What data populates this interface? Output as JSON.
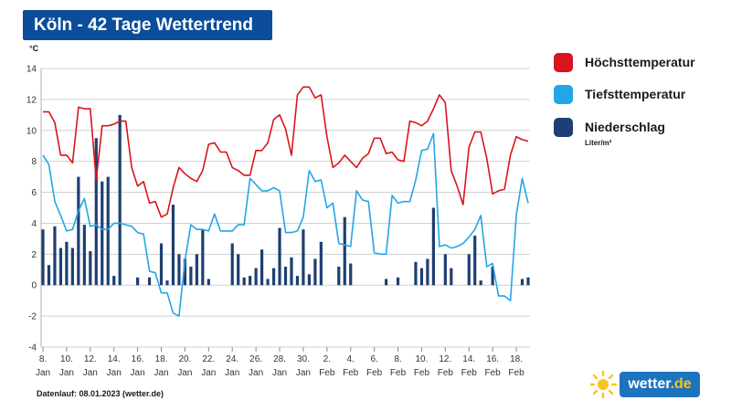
{
  "title": "Köln - 42 Tage Wettertrend",
  "footer": "Datenlauf: 08.01.2023 (wetter.de)",
  "logo": {
    "text_main": "wetter",
    "text_dot_de": ".de",
    "icon": "sun-icon"
  },
  "legend": {
    "items": [
      {
        "label": "Höchsttemperatur",
        "color": "#d9141c"
      },
      {
        "label": "Tiefsttemperatur",
        "color": "#22a6e8"
      },
      {
        "label": "Niederschlag",
        "color": "#1d3f72"
      }
    ],
    "unit": "Liter/m²"
  },
  "chart_data": {
    "type": "line",
    "y_unit": "°C",
    "ylim": [
      -4,
      14
    ],
    "y_ticks": [
      "14",
      "12",
      "10",
      "8",
      "6",
      "4",
      "2",
      "0",
      "-2",
      "-4"
    ],
    "grid": true,
    "x_tick_labels": [
      {
        "day": "8.",
        "month": "Jan"
      },
      {
        "day": "10.",
        "month": "Jan"
      },
      {
        "day": "12.",
        "month": "Jan"
      },
      {
        "day": "14.",
        "month": "Jan"
      },
      {
        "day": "16.",
        "month": "Jan"
      },
      {
        "day": "18.",
        "month": "Jan"
      },
      {
        "day": "20.",
        "month": "Jan"
      },
      {
        "day": "22.",
        "month": "Jan"
      },
      {
        "day": "24.",
        "month": "Jan"
      },
      {
        "day": "26.",
        "month": "Jan"
      },
      {
        "day": "28.",
        "month": "Jan"
      },
      {
        "day": "30.",
        "month": "Jan"
      },
      {
        "day": "2.",
        "month": "Feb"
      },
      {
        "day": "4.",
        "month": "Feb"
      },
      {
        "day": "6.",
        "month": "Feb"
      },
      {
        "day": "8.",
        "month": "Feb"
      },
      {
        "day": "10.",
        "month": "Feb"
      },
      {
        "day": "12.",
        "month": "Feb"
      },
      {
        "day": "14.",
        "month": "Feb"
      },
      {
        "day": "16.",
        "month": "Feb"
      },
      {
        "day": "18.",
        "month": "Feb"
      }
    ],
    "x_range_days": [
      0,
      41
    ],
    "series": [
      {
        "name": "Höchsttemperatur",
        "color": "#d9141c",
        "points": [
          [
            0,
            11.2
          ],
          [
            0.5,
            11.2
          ],
          [
            1,
            10.5
          ],
          [
            1.5,
            8.4
          ],
          [
            2,
            8.4
          ],
          [
            2.5,
            7.9
          ],
          [
            3,
            11.5
          ],
          [
            3.5,
            11.4
          ],
          [
            4,
            11.4
          ],
          [
            4.5,
            6.8
          ],
          [
            5,
            10.3
          ],
          [
            5.5,
            10.3
          ],
          [
            6,
            10.4
          ],
          [
            6.5,
            10.6
          ],
          [
            7,
            10.6
          ],
          [
            7.5,
            7.6
          ],
          [
            8,
            6.4
          ],
          [
            8.5,
            6.7
          ],
          [
            9,
            5.3
          ],
          [
            9.5,
            5.4
          ],
          [
            10,
            4.4
          ],
          [
            10.5,
            4.6
          ],
          [
            11,
            6.3
          ],
          [
            11.5,
            7.6
          ],
          [
            12,
            7.2
          ],
          [
            12.5,
            6.9
          ],
          [
            13,
            6.7
          ],
          [
            13.5,
            7.4
          ],
          [
            14,
            9.1
          ],
          [
            14.5,
            9.2
          ],
          [
            15,
            8.6
          ],
          [
            15.5,
            8.6
          ],
          [
            16,
            7.6
          ],
          [
            16.5,
            7.4
          ],
          [
            17,
            7.1
          ],
          [
            17.5,
            7.1
          ],
          [
            18,
            8.7
          ],
          [
            18.5,
            8.7
          ],
          [
            19,
            9.2
          ],
          [
            19.5,
            10.7
          ],
          [
            20,
            11
          ],
          [
            20.5,
            10.1
          ],
          [
            21,
            8.4
          ],
          [
            21.5,
            12.3
          ],
          [
            22,
            12.8
          ],
          [
            22.5,
            12.8
          ],
          [
            23,
            12.1
          ],
          [
            23.5,
            12.3
          ],
          [
            24,
            9.6
          ],
          [
            24.5,
            7.6
          ],
          [
            25,
            7.9
          ],
          [
            25.5,
            8.4
          ],
          [
            26,
            8
          ],
          [
            26.5,
            7.6
          ],
          [
            27,
            8.2
          ],
          [
            27.5,
            8.5
          ],
          [
            28,
            9.5
          ],
          [
            28.5,
            9.5
          ],
          [
            29,
            8.5
          ],
          [
            29.5,
            8.6
          ],
          [
            30,
            8.1
          ],
          [
            30.5,
            8
          ],
          [
            31,
            10.6
          ],
          [
            31.5,
            10.5
          ],
          [
            32,
            10.3
          ],
          [
            32.5,
            10.6
          ],
          [
            33,
            11.4
          ],
          [
            33.5,
            12.3
          ],
          [
            34,
            11.8
          ],
          [
            34.5,
            7.4
          ],
          [
            35,
            6.4
          ],
          [
            35.5,
            5.2
          ],
          [
            36,
            8.9
          ],
          [
            36.5,
            9.9
          ],
          [
            37,
            9.9
          ],
          [
            37.5,
            8.2
          ],
          [
            38,
            5.9
          ],
          [
            38.5,
            6.1
          ],
          [
            39,
            6.2
          ],
          [
            39.5,
            8.4
          ],
          [
            40,
            9.6
          ],
          [
            40.5,
            9.4
          ],
          [
            41,
            9.3
          ]
        ]
      },
      {
        "name": "Tiefsttemperatur",
        "color": "#22a6e8",
        "points": [
          [
            0,
            8.4
          ],
          [
            0.5,
            7.8
          ],
          [
            1,
            5.4
          ],
          [
            1.5,
            4.5
          ],
          [
            2,
            3.5
          ],
          [
            2.5,
            3.6
          ],
          [
            3,
            4.8
          ],
          [
            3.5,
            5.6
          ],
          [
            4,
            3.8
          ],
          [
            4.5,
            3.9
          ],
          [
            5,
            3.6
          ],
          [
            5.5,
            3.6
          ],
          [
            6,
            4
          ],
          [
            6.5,
            4
          ],
          [
            7,
            3.9
          ],
          [
            7.5,
            3.8
          ],
          [
            8,
            3.4
          ],
          [
            8.5,
            3.3
          ],
          [
            9,
            0.9
          ],
          [
            9.5,
            0.8
          ],
          [
            10,
            -0.5
          ],
          [
            10.5,
            -0.5
          ],
          [
            11,
            -1.8
          ],
          [
            11.5,
            -2
          ],
          [
            12,
            1.6
          ],
          [
            12.5,
            3.9
          ],
          [
            13,
            3.6
          ],
          [
            13.5,
            3.6
          ],
          [
            14,
            3.5
          ],
          [
            14.5,
            4.6
          ],
          [
            15,
            3.5
          ],
          [
            15.5,
            3.5
          ],
          [
            16,
            3.5
          ],
          [
            16.5,
            3.9
          ],
          [
            17,
            3.9
          ],
          [
            17.5,
            6.9
          ],
          [
            18,
            6.5
          ],
          [
            18.5,
            6.1
          ],
          [
            19,
            6.1
          ],
          [
            19.5,
            6.3
          ],
          [
            20,
            6.1
          ],
          [
            20.5,
            3.4
          ],
          [
            21,
            3.4
          ],
          [
            21.5,
            3.5
          ],
          [
            22,
            4.4
          ],
          [
            22.5,
            7.4
          ],
          [
            23,
            6.7
          ],
          [
            23.5,
            6.8
          ],
          [
            24,
            5
          ],
          [
            24.5,
            5.3
          ],
          [
            25,
            2.7
          ],
          [
            25.5,
            2.6
          ],
          [
            26,
            2.5
          ],
          [
            26.5,
            6.1
          ],
          [
            27,
            5.5
          ],
          [
            27.5,
            5.4
          ],
          [
            28,
            2.1
          ],
          [
            28.5,
            2
          ],
          [
            29,
            2
          ],
          [
            29.5,
            5.8
          ],
          [
            30,
            5.3
          ],
          [
            30.5,
            5.4
          ],
          [
            31,
            5.4
          ],
          [
            31.5,
            6.8
          ],
          [
            32,
            8.7
          ],
          [
            32.5,
            8.8
          ],
          [
            33,
            9.8
          ],
          [
            33.5,
            2.5
          ],
          [
            34,
            2.6
          ],
          [
            34.5,
            2.4
          ],
          [
            35,
            2.5
          ],
          [
            35.5,
            2.7
          ],
          [
            36,
            3.1
          ],
          [
            36.5,
            3.6
          ],
          [
            37,
            4.5
          ],
          [
            37.5,
            1.2
          ],
          [
            38,
            1.4
          ],
          [
            38.5,
            -0.7
          ],
          [
            39,
            -0.7
          ],
          [
            39.5,
            -1
          ],
          [
            40,
            4.5
          ],
          [
            40.5,
            6.9
          ],
          [
            41,
            5.3
          ]
        ]
      },
      {
        "name": "Niederschlag",
        "color": "#1d3f72",
        "unit": "Liter/m²",
        "bars": [
          [
            0,
            3.6
          ],
          [
            0.5,
            1.3
          ],
          [
            1,
            3.8
          ],
          [
            1.5,
            2.4
          ],
          [
            2,
            2.8
          ],
          [
            2.5,
            2.4
          ],
          [
            3,
            7
          ],
          [
            3.5,
            3.9
          ],
          [
            4,
            2.2
          ],
          [
            4.5,
            9.5
          ],
          [
            5,
            6.7
          ],
          [
            5.5,
            7
          ],
          [
            6,
            0.6
          ],
          [
            6.5,
            11
          ],
          [
            8,
            0.5
          ],
          [
            9,
            0.5
          ],
          [
            10,
            2.7
          ],
          [
            10.5,
            0.3
          ],
          [
            11,
            5.2
          ],
          [
            11.5,
            2
          ],
          [
            12,
            1.7
          ],
          [
            12.5,
            1.2
          ],
          [
            13,
            2
          ],
          [
            13.5,
            3.6
          ],
          [
            14,
            0.4
          ],
          [
            16,
            2.7
          ],
          [
            16.5,
            2
          ],
          [
            17,
            0.5
          ],
          [
            17.5,
            0.6
          ],
          [
            18,
            1.1
          ],
          [
            18.5,
            2.3
          ],
          [
            19,
            0.4
          ],
          [
            19.5,
            1.1
          ],
          [
            20,
            3.7
          ],
          [
            20.5,
            1.2
          ],
          [
            21,
            1.8
          ],
          [
            21.5,
            0.6
          ],
          [
            22,
            3.6
          ],
          [
            22.5,
            0.7
          ],
          [
            23,
            1.7
          ],
          [
            23.5,
            2.8
          ],
          [
            25,
            1.2
          ],
          [
            25.5,
            4.4
          ],
          [
            26,
            1.4
          ],
          [
            29,
            0.4
          ],
          [
            30,
            0.5
          ],
          [
            31.5,
            1.5
          ],
          [
            32,
            1.1
          ],
          [
            32.5,
            1.7
          ],
          [
            33,
            5
          ],
          [
            34,
            2
          ],
          [
            34.5,
            1.1
          ],
          [
            36,
            2
          ],
          [
            36.5,
            3.2
          ],
          [
            37,
            0.3
          ],
          [
            38,
            1.2
          ],
          [
            40.5,
            0.4
          ],
          [
            41,
            0.5
          ]
        ]
      }
    ]
  }
}
